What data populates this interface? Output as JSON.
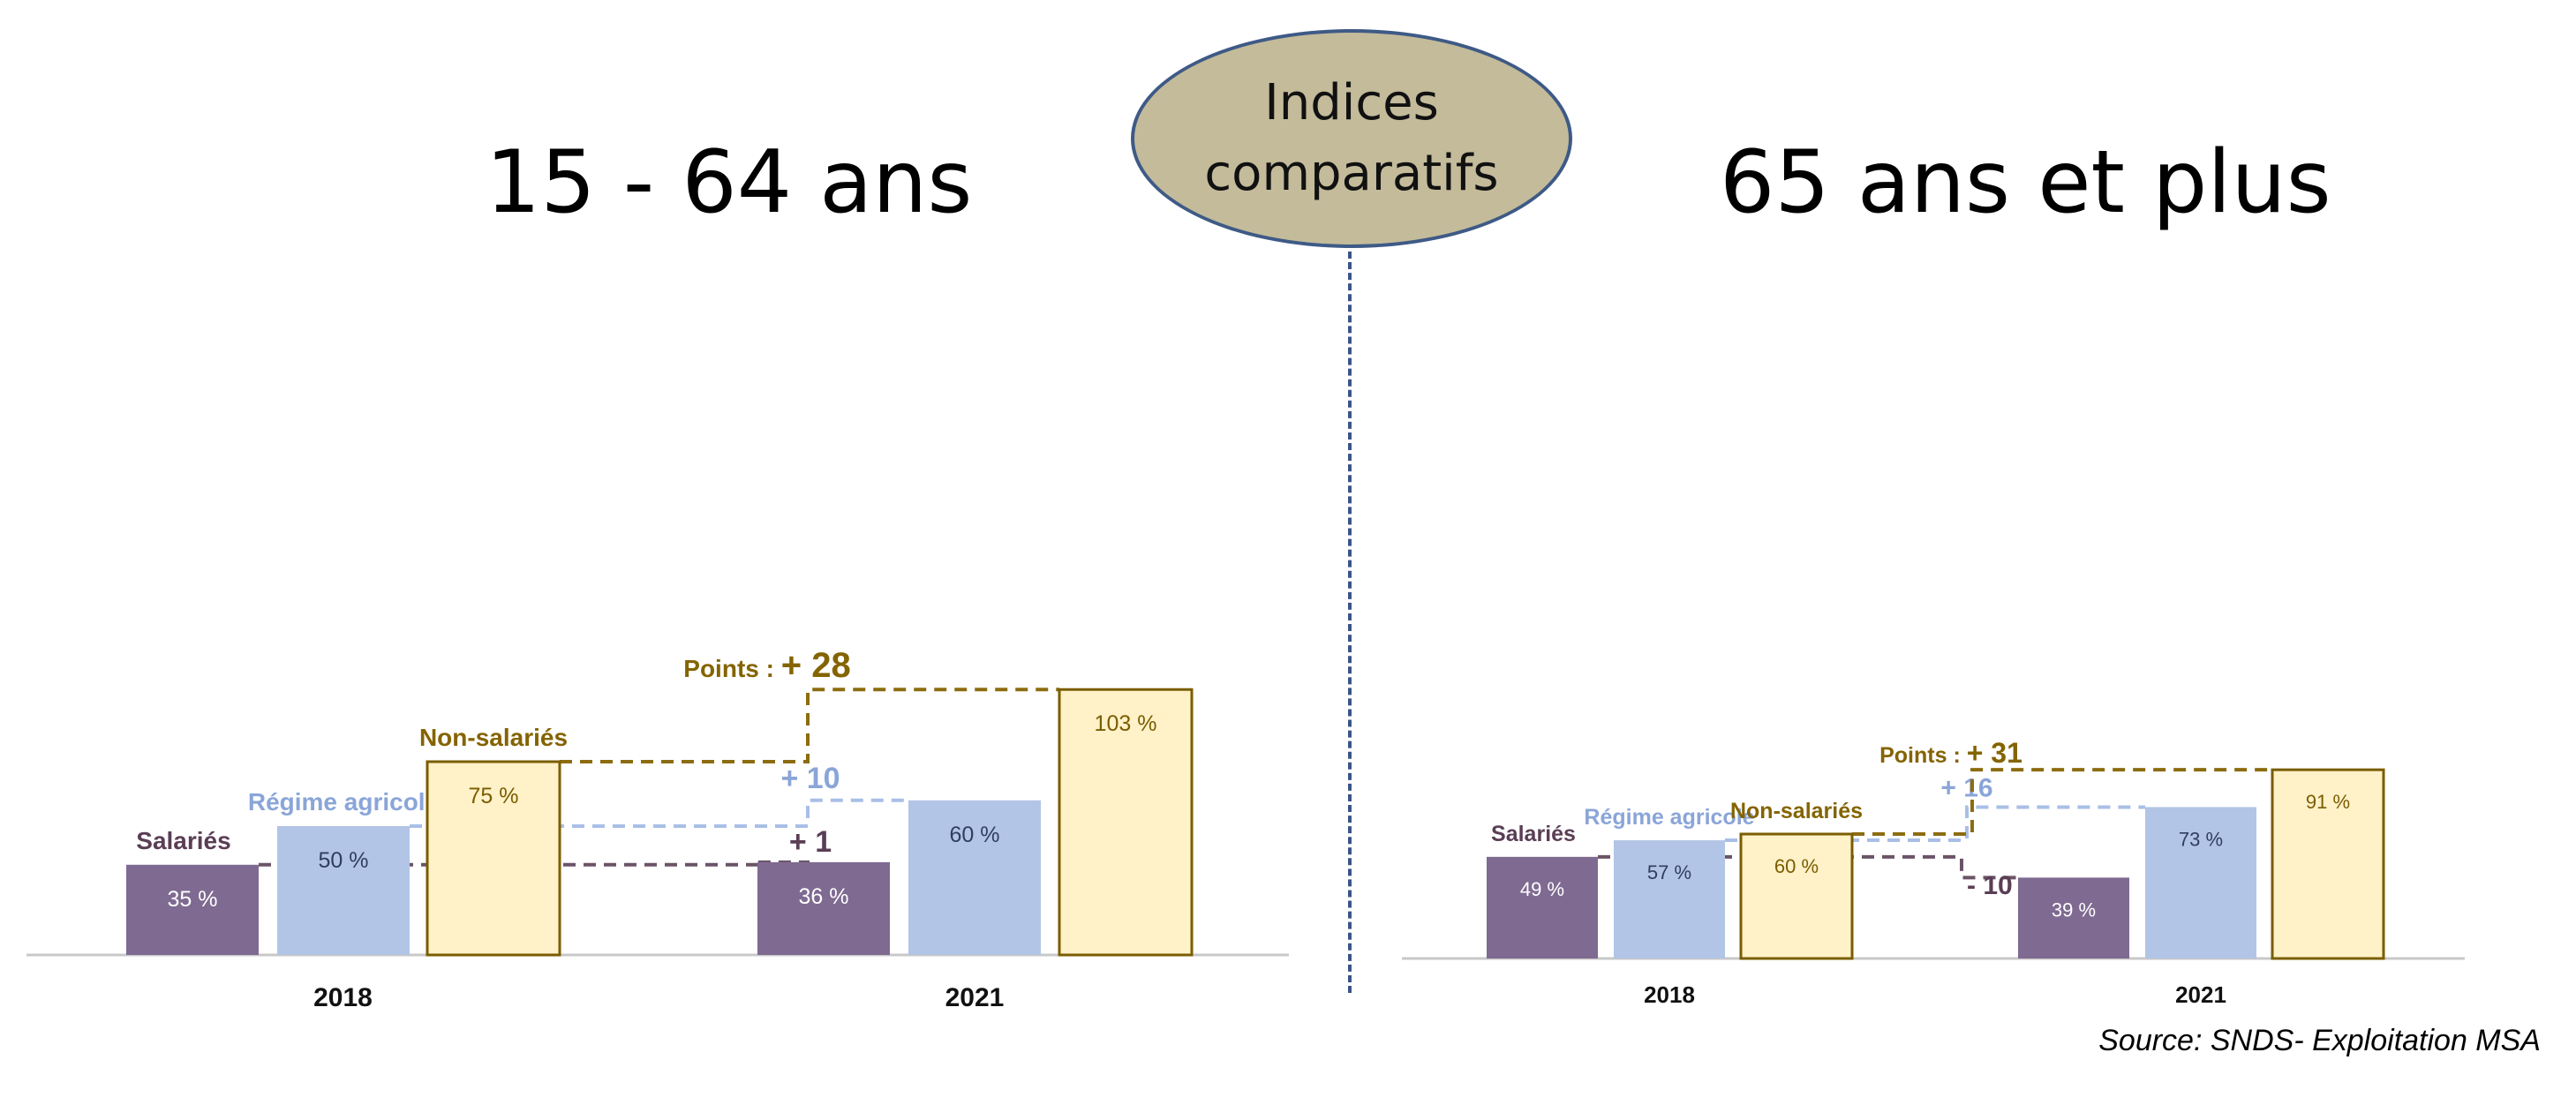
{
  "headers": {
    "left_title": "15 - 64 ans",
    "right_title": "65 ans et plus",
    "center_label": "Indices comparatifs"
  },
  "source": "Source: SNDS- Exploitation MSA",
  "colors": {
    "salaries": "#7f6a91",
    "regime_agricole": "#b2c5e6",
    "non_salaries_fill": "#fff1c8",
    "non_salaries_border": "#7a5d00",
    "label_salaries": "#5a3e55",
    "label_regime": "#8aa5d8",
    "label_non_salaries": "#846400"
  },
  "chart_data": [
    {
      "type": "bar",
      "title": "15 - 64 ans",
      "categories": [
        "2018",
        "2021"
      ],
      "series": [
        {
          "name": "Salariés",
          "values": [
            35,
            36
          ],
          "labels": [
            "35 %",
            "36 %"
          ]
        },
        {
          "name": "Régime agricole",
          "values": [
            50,
            60
          ],
          "labels": [
            "50 %",
            "60 %"
          ]
        },
        {
          "name": "Non-salariés",
          "values": [
            75,
            103
          ],
          "labels": [
            "75 %",
            "103 %"
          ]
        }
      ],
      "changes": {
        "prefix": "Points :",
        "salaries": "+ 1",
        "regime_agricole": "+ 10",
        "non_salaries": "+ 28"
      },
      "ylim": [
        0,
        110
      ]
    },
    {
      "type": "bar",
      "title": "65 ans et plus",
      "categories": [
        "2018",
        "2021"
      ],
      "series": [
        {
          "name": "Salariés",
          "values": [
            49,
            39
          ],
          "labels": [
            "49 %",
            "39 %"
          ]
        },
        {
          "name": "Régime agricole",
          "values": [
            57,
            73
          ],
          "labels": [
            "57 %",
            "73 %"
          ]
        },
        {
          "name": "Non-salariés",
          "values": [
            60,
            91
          ],
          "labels": [
            "60 %",
            "91 %"
          ]
        }
      ],
      "changes": {
        "prefix": "Points :",
        "salaries": "- 10",
        "regime_agricole": "+ 16",
        "non_salaries": "+ 31"
      },
      "ylim": [
        0,
        110
      ]
    }
  ]
}
